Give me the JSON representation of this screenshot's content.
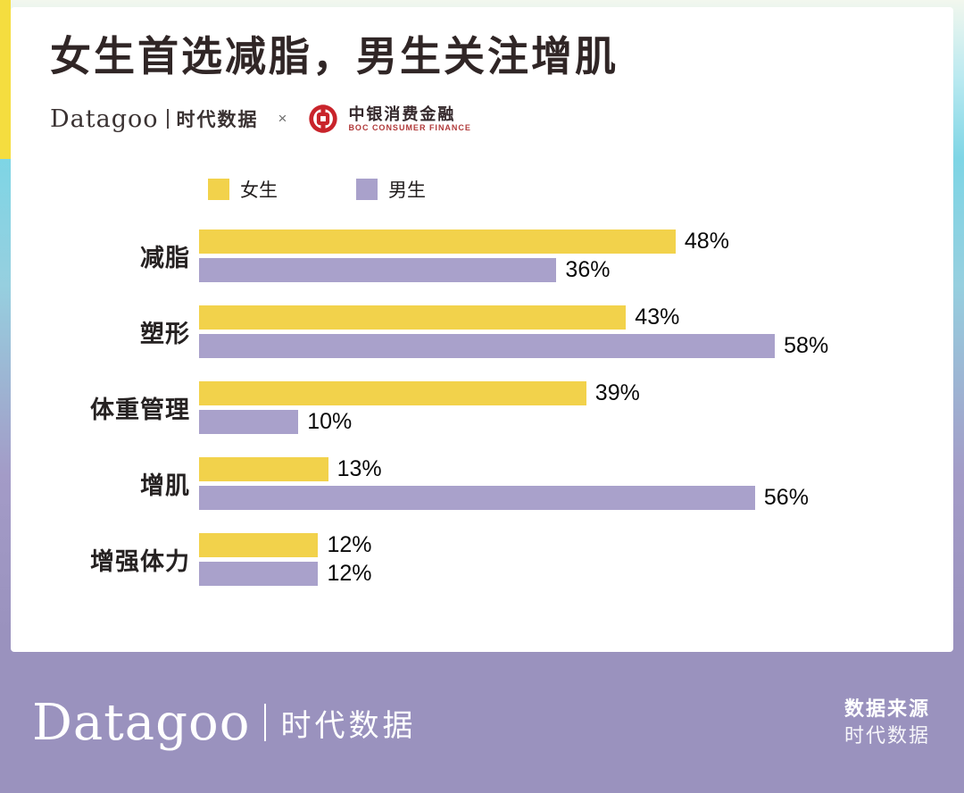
{
  "header": {
    "title": "女生首选减脂，男生关注增肌",
    "brand_en": "Datagoo",
    "brand_cn": "时代数据",
    "collab_x": "×",
    "partner_name": "中银消费金融",
    "partner_sub": "BOC CONSUMER FINANCE"
  },
  "chart_data": {
    "type": "bar",
    "orientation": "horizontal",
    "title": "女生首选减脂，男生关注增肌",
    "categories": [
      "减脂",
      "塑形",
      "体重管理",
      "增肌",
      "增强体力"
    ],
    "series": [
      {
        "key": "female",
        "name": "女生",
        "color": "#F2D24B",
        "values": [
          48,
          43,
          39,
          13,
          12
        ]
      },
      {
        "key": "male",
        "name": "男生",
        "color": "#A9A1CB",
        "values": [
          36,
          58,
          10,
          56,
          12
        ]
      }
    ],
    "value_suffix": "%",
    "xlim": [
      0,
      62
    ],
    "legend_position": "top",
    "grid": false
  },
  "footer": {
    "brand_en": "Datagoo",
    "brand_cn": "时代数据",
    "source_label": "数据来源",
    "source_value": "时代数据"
  },
  "colors": {
    "female_bar": "#F2D24B",
    "male_bar": "#A9A1CB",
    "footer_bg": "#9A92BE",
    "accent_yellow": "#F5DD3F",
    "accent_cyan": "#7ED5E5",
    "boc_red": "#C9242B"
  }
}
